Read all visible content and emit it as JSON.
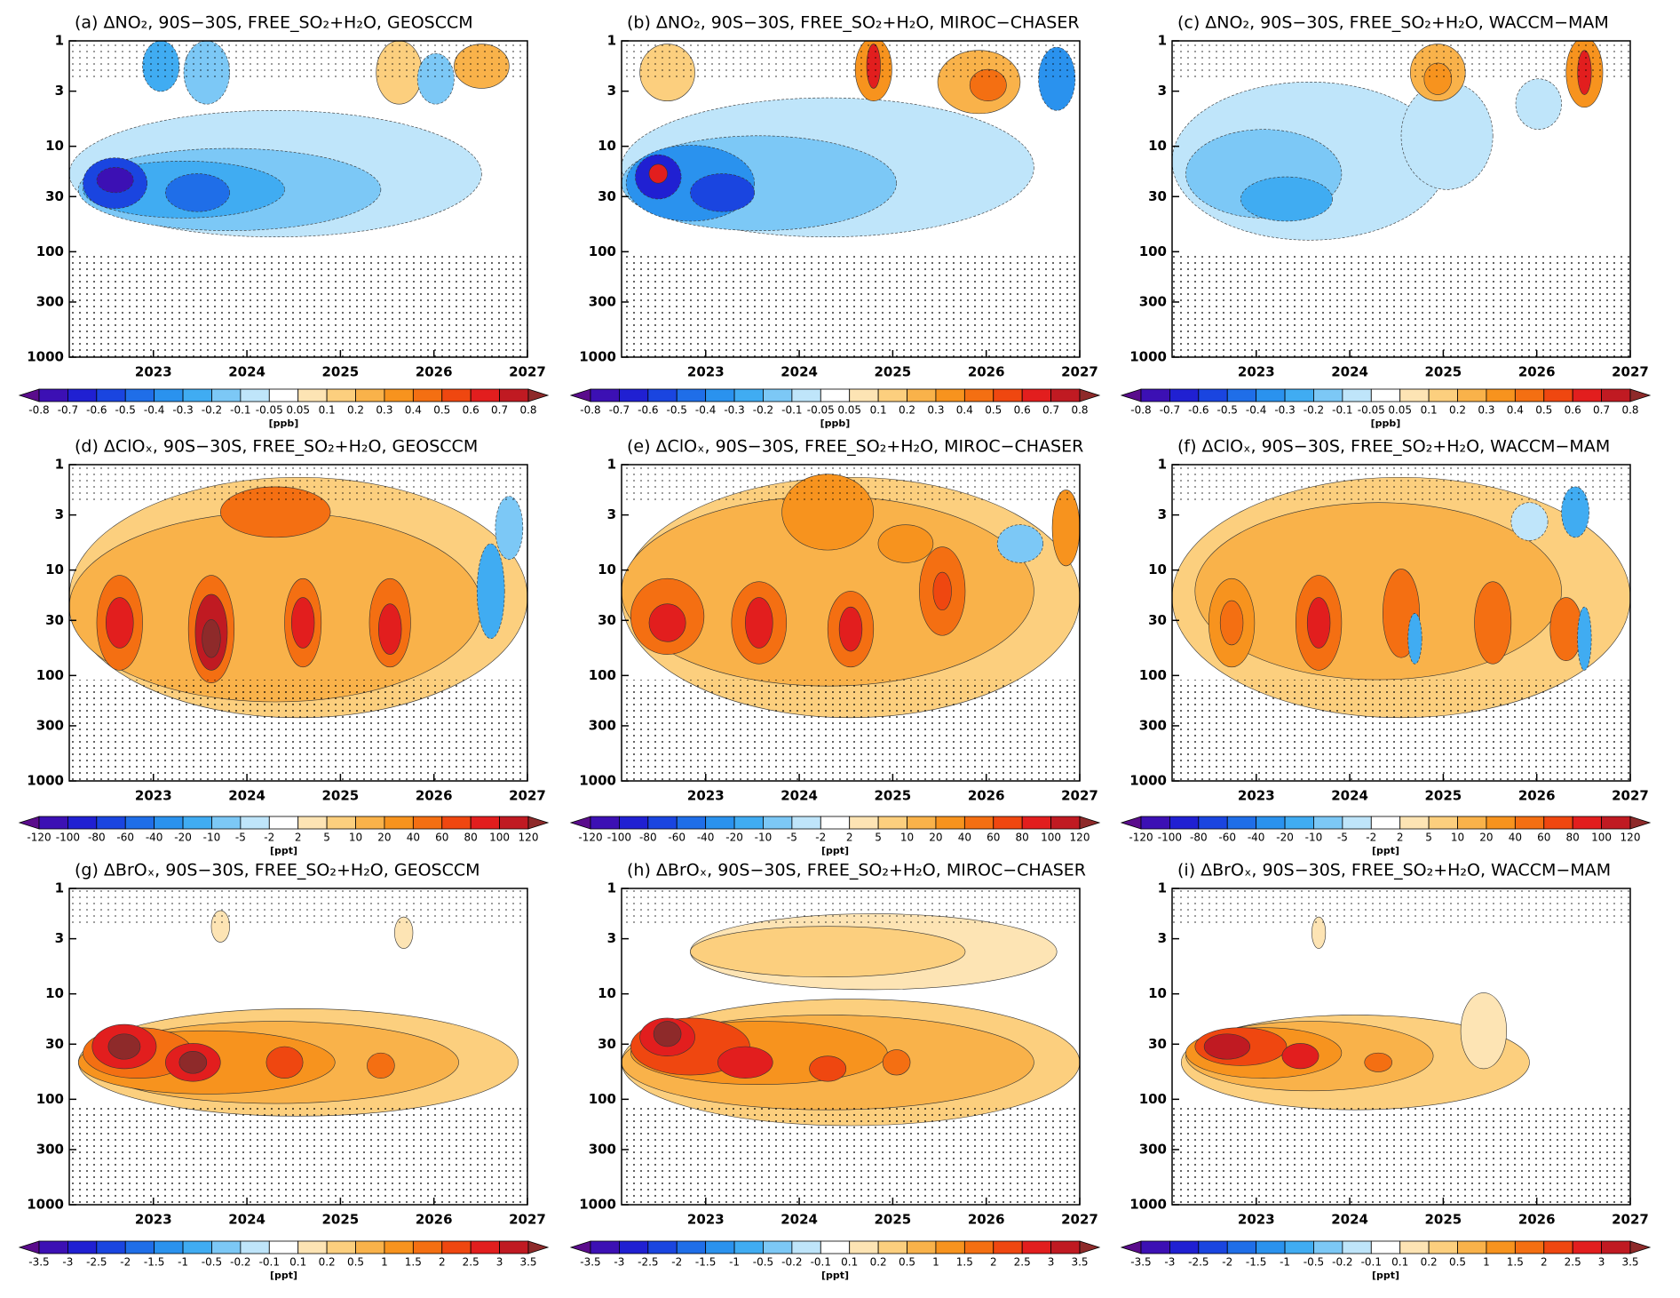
{
  "chart_data": [
    {
      "type": "contour",
      "title": "(a) ΔNO₂, 90S−30S, FREE_SO₂+H₂O, GEOSCCM",
      "xlim": [
        2022.1,
        2027
      ],
      "xticks": [
        2023,
        2024,
        2025,
        2026,
        2027
      ],
      "ylim": [
        1000,
        1
      ],
      "yticks": [
        1,
        3,
        10,
        30,
        100,
        300,
        1000
      ],
      "log_y": true,
      "colorbar": {
        "label": "[ppb]",
        "levels": [
          -0.8,
          -0.7,
          -0.6,
          -0.5,
          -0.4,
          -0.3,
          -0.2,
          -0.1,
          -0.05,
          0.05,
          0.1,
          0.2,
          0.3,
          0.4,
          0.5,
          0.6,
          0.7,
          0.8
        ],
        "colors": [
          "#5a0c8c",
          "#3c10b4",
          "#2020d2",
          "#1a45e0",
          "#1f6ee8",
          "#2a92ee",
          "#40acf2",
          "#7cc8f6",
          "#bfe5fa",
          "#ffffff",
          "#fde4b4",
          "#fccf7e",
          "#f9b24a",
          "#f7931e",
          "#f46f12",
          "#ef4710",
          "#e21e1e",
          "#c01a22",
          "#8e2a2a"
        ]
      }
    },
    {
      "type": "contour",
      "title": "(b) ΔNO₂, 90S−30S, FREE_SO₂+H₂O, MIROC−CHASER",
      "xlim": [
        2022.1,
        2027
      ],
      "xticks": [
        2023,
        2024,
        2025,
        2026,
        2027
      ],
      "ylim": [
        1000,
        1
      ],
      "yticks": [
        1,
        3,
        10,
        30,
        100,
        300,
        1000
      ],
      "log_y": true,
      "colorbar": {
        "label": "[ppb]",
        "levels": [
          -0.8,
          -0.7,
          -0.6,
          -0.5,
          -0.4,
          -0.3,
          -0.2,
          -0.1,
          -0.05,
          0.05,
          0.1,
          0.2,
          0.3,
          0.4,
          0.5,
          0.6,
          0.7,
          0.8
        ],
        "colors": [
          "#5a0c8c",
          "#3c10b4",
          "#2020d2",
          "#1a45e0",
          "#1f6ee8",
          "#2a92ee",
          "#40acf2",
          "#7cc8f6",
          "#bfe5fa",
          "#ffffff",
          "#fde4b4",
          "#fccf7e",
          "#f9b24a",
          "#f7931e",
          "#f46f12",
          "#ef4710",
          "#e21e1e",
          "#c01a22",
          "#8e2a2a"
        ]
      }
    },
    {
      "type": "contour",
      "title": "(c) ΔNO₂, 90S−30S, FREE_SO₂+H₂O, WACCM−MAM",
      "xlim": [
        2022.1,
        2027
      ],
      "xticks": [
        2023,
        2024,
        2025,
        2026,
        2027
      ],
      "ylim": [
        1000,
        1
      ],
      "yticks": [
        1,
        3,
        10,
        30,
        100,
        300,
        1000
      ],
      "log_y": true,
      "colorbar": {
        "label": "[ppb]",
        "levels": [
          -0.8,
          -0.7,
          -0.6,
          -0.5,
          -0.4,
          -0.3,
          -0.2,
          -0.1,
          -0.05,
          0.05,
          0.1,
          0.2,
          0.3,
          0.4,
          0.5,
          0.6,
          0.7,
          0.8
        ],
        "colors": [
          "#5a0c8c",
          "#3c10b4",
          "#2020d2",
          "#1a45e0",
          "#1f6ee8",
          "#2a92ee",
          "#40acf2",
          "#7cc8f6",
          "#bfe5fa",
          "#ffffff",
          "#fde4b4",
          "#fccf7e",
          "#f9b24a",
          "#f7931e",
          "#f46f12",
          "#ef4710",
          "#e21e1e",
          "#c01a22",
          "#8e2a2a"
        ]
      }
    },
    {
      "type": "contour",
      "title": "(d) ΔClOₓ, 90S−30S, FREE_SO₂+H₂O, GEOSCCM",
      "xlim": [
        2022.1,
        2027
      ],
      "xticks": [
        2023,
        2024,
        2025,
        2026,
        2027
      ],
      "ylim": [
        1000,
        1
      ],
      "yticks": [
        1,
        3,
        10,
        30,
        100,
        300,
        1000
      ],
      "log_y": true,
      "colorbar": {
        "label": "[ppt]",
        "levels": [
          -120,
          -100,
          -80,
          -60,
          -40,
          -20,
          -10,
          -5,
          -2,
          2,
          5,
          10,
          20,
          40,
          60,
          80,
          100,
          120
        ],
        "colors": [
          "#5a0c8c",
          "#3c10b4",
          "#2020d2",
          "#1a45e0",
          "#1f6ee8",
          "#2a92ee",
          "#40acf2",
          "#7cc8f6",
          "#bfe5fa",
          "#ffffff",
          "#fde4b4",
          "#fccf7e",
          "#f9b24a",
          "#f7931e",
          "#f46f12",
          "#ef4710",
          "#e21e1e",
          "#c01a22",
          "#8e2a2a"
        ]
      }
    },
    {
      "type": "contour",
      "title": "(e) ΔClOₓ, 90S−30S, FREE_SO₂+H₂O, MIROC−CHASER",
      "xlim": [
        2022.1,
        2027
      ],
      "xticks": [
        2023,
        2024,
        2025,
        2026,
        2027
      ],
      "ylim": [
        1000,
        1
      ],
      "yticks": [
        1,
        3,
        10,
        30,
        100,
        300,
        1000
      ],
      "log_y": true,
      "colorbar": {
        "label": "[ppt]",
        "levels": [
          -120,
          -100,
          -80,
          -60,
          -40,
          -20,
          -10,
          -5,
          -2,
          2,
          5,
          10,
          20,
          40,
          60,
          80,
          100,
          120
        ],
        "colors": [
          "#5a0c8c",
          "#3c10b4",
          "#2020d2",
          "#1a45e0",
          "#1f6ee8",
          "#2a92ee",
          "#40acf2",
          "#7cc8f6",
          "#bfe5fa",
          "#ffffff",
          "#fde4b4",
          "#fccf7e",
          "#f9b24a",
          "#f7931e",
          "#f46f12",
          "#ef4710",
          "#e21e1e",
          "#c01a22",
          "#8e2a2a"
        ]
      }
    },
    {
      "type": "contour",
      "title": "(f) ΔClOₓ, 90S−30S, FREE_SO₂+H₂O, WACCM−MAM",
      "xlim": [
        2022.1,
        2027
      ],
      "xticks": [
        2023,
        2024,
        2025,
        2026,
        2027
      ],
      "ylim": [
        1000,
        1
      ],
      "yticks": [
        1,
        3,
        10,
        30,
        100,
        300,
        1000
      ],
      "log_y": true,
      "colorbar": {
        "label": "[ppt]",
        "levels": [
          -120,
          -100,
          -80,
          -60,
          -40,
          -20,
          -10,
          -5,
          -2,
          2,
          5,
          10,
          20,
          40,
          60,
          80,
          100,
          120
        ],
        "colors": [
          "#5a0c8c",
          "#3c10b4",
          "#2020d2",
          "#1a45e0",
          "#1f6ee8",
          "#2a92ee",
          "#40acf2",
          "#7cc8f6",
          "#bfe5fa",
          "#ffffff",
          "#fde4b4",
          "#fccf7e",
          "#f9b24a",
          "#f7931e",
          "#f46f12",
          "#ef4710",
          "#e21e1e",
          "#c01a22",
          "#8e2a2a"
        ]
      }
    },
    {
      "type": "contour",
      "title": "(g) ΔBrOₓ, 90S−30S, FREE_SO₂+H₂O, GEOSCCM",
      "xlim": [
        2022.1,
        2027
      ],
      "xticks": [
        2023,
        2024,
        2025,
        2026,
        2027
      ],
      "ylim": [
        1000,
        1
      ],
      "yticks": [
        1,
        3,
        10,
        30,
        100,
        300,
        1000
      ],
      "log_y": true,
      "colorbar": {
        "label": "[ppt]",
        "levels": [
          -3.5,
          -3,
          -2.5,
          -2,
          -1.5,
          -1,
          -0.5,
          -0.2,
          -0.1,
          0.1,
          0.2,
          0.5,
          1,
          1.5,
          2,
          2.5,
          3,
          3.5
        ],
        "colors": [
          "#5a0c8c",
          "#3c10b4",
          "#2020d2",
          "#1a45e0",
          "#1f6ee8",
          "#2a92ee",
          "#40acf2",
          "#7cc8f6",
          "#bfe5fa",
          "#ffffff",
          "#fde4b4",
          "#fccf7e",
          "#f9b24a",
          "#f7931e",
          "#f46f12",
          "#ef4710",
          "#e21e1e",
          "#c01a22",
          "#8e2a2a"
        ]
      }
    },
    {
      "type": "contour",
      "title": "(h) ΔBrOₓ, 90S−30S, FREE_SO₂+H₂O, MIROC−CHASER",
      "xlim": [
        2022.1,
        2027
      ],
      "xticks": [
        2023,
        2024,
        2025,
        2026,
        2027
      ],
      "ylim": [
        1000,
        1
      ],
      "yticks": [
        1,
        3,
        10,
        30,
        100,
        300,
        1000
      ],
      "log_y": true,
      "colorbar": {
        "label": "[ppt]",
        "levels": [
          -3.5,
          -3,
          -2.5,
          -2,
          -1.5,
          -1,
          -0.5,
          -0.2,
          -0.1,
          0.1,
          0.2,
          0.5,
          1,
          1.5,
          2,
          2.5,
          3,
          3.5
        ],
        "colors": [
          "#5a0c8c",
          "#3c10b4",
          "#2020d2",
          "#1a45e0",
          "#1f6ee8",
          "#2a92ee",
          "#40acf2",
          "#7cc8f6",
          "#bfe5fa",
          "#ffffff",
          "#fde4b4",
          "#fccf7e",
          "#f9b24a",
          "#f7931e",
          "#f46f12",
          "#ef4710",
          "#e21e1e",
          "#c01a22",
          "#8e2a2a"
        ]
      }
    },
    {
      "type": "contour",
      "title": "(i) ΔBrOₓ, 90S−30S, FREE_SO₂+H₂O, WACCM−MAM",
      "xlim": [
        2022.1,
        2027
      ],
      "xticks": [
        2023,
        2024,
        2025,
        2026,
        2027
      ],
      "ylim": [
        1000,
        1
      ],
      "yticks": [
        1,
        3,
        10,
        30,
        100,
        300,
        1000
      ],
      "log_y": true,
      "colorbar": {
        "label": "[ppt]",
        "levels": [
          -3.5,
          -3,
          -2.5,
          -2,
          -1.5,
          -1,
          -0.5,
          -0.2,
          -0.1,
          0.1,
          0.2,
          0.5,
          1,
          1.5,
          2,
          2.5,
          3,
          3.5
        ],
        "colors": [
          "#5a0c8c",
          "#3c10b4",
          "#2020d2",
          "#1a45e0",
          "#1f6ee8",
          "#2a92ee",
          "#40acf2",
          "#7cc8f6",
          "#bfe5fa",
          "#ffffff",
          "#fde4b4",
          "#fccf7e",
          "#f9b24a",
          "#f7931e",
          "#f46f12",
          "#ef4710",
          "#e21e1e",
          "#c01a22",
          "#8e2a2a"
        ]
      }
    }
  ]
}
